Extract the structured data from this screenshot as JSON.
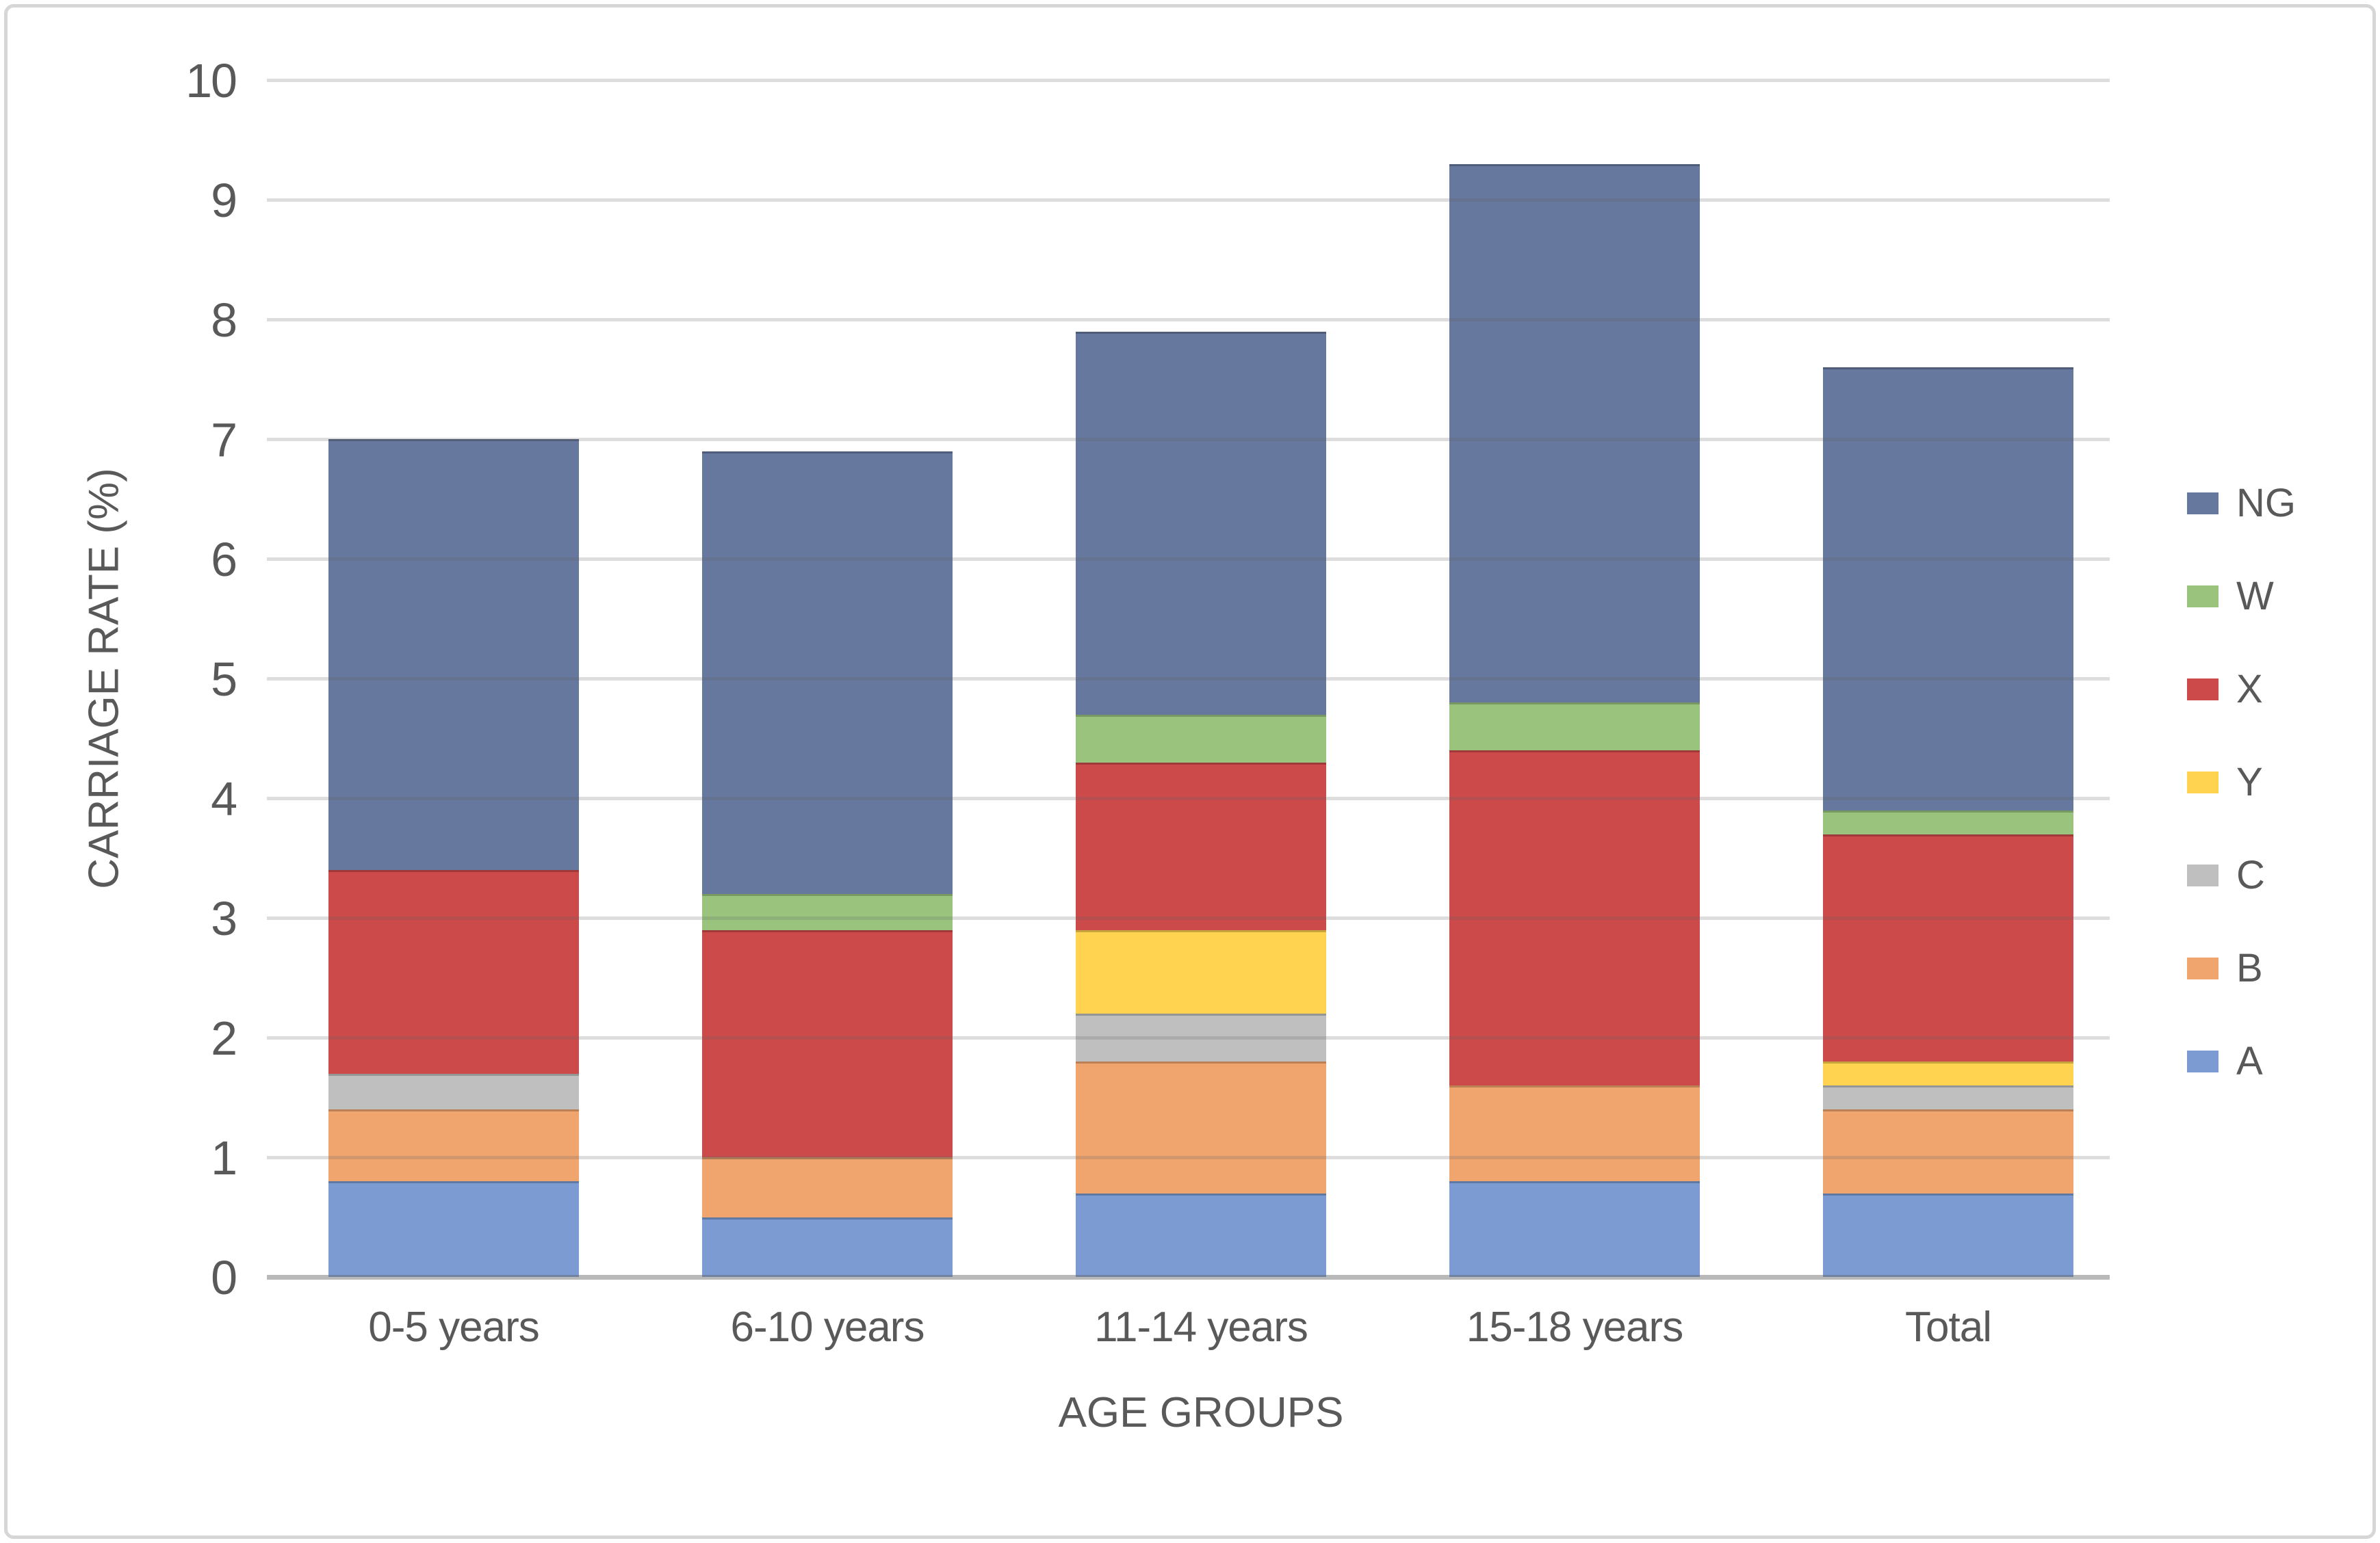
{
  "chart_data": {
    "type": "bar",
    "stacked": true,
    "title": "",
    "xlabel": "AGE GROUPS",
    "ylabel": "CARRIAGE RATE (%)",
    "ylim": [
      0,
      10
    ],
    "ytick_step": 1,
    "yticks": [
      0,
      1,
      2,
      3,
      4,
      5,
      6,
      7,
      8,
      9,
      10
    ],
    "grid": true,
    "legend_position": "right",
    "categories": [
      "0-5 years",
      "6-10 years",
      "11-14 years",
      "15-18 years",
      "Total"
    ],
    "series": [
      {
        "name": "A",
        "color": "#7C9BD3",
        "values": [
          0.8,
          0.5,
          0.7,
          0.8,
          0.7
        ]
      },
      {
        "name": "B",
        "color": "#F0A46E",
        "values": [
          0.6,
          0.5,
          1.1,
          0.8,
          0.7
        ]
      },
      {
        "name": "C",
        "color": "#BFBFBF",
        "values": [
          0.3,
          0.0,
          0.4,
          0.0,
          0.2
        ]
      },
      {
        "name": "Y",
        "color": "#FFD34F",
        "values": [
          0.0,
          0.0,
          0.7,
          0.0,
          0.2
        ]
      },
      {
        "name": "X",
        "color": "#CD4A4A",
        "values": [
          1.7,
          1.9,
          1.4,
          2.8,
          1.9
        ]
      },
      {
        "name": "W",
        "color": "#9AC47E",
        "values": [
          0.0,
          0.3,
          0.4,
          0.4,
          0.2
        ]
      },
      {
        "name": "NG",
        "color": "#66789E",
        "values": [
          3.6,
          3.7,
          3.2,
          4.5,
          3.7
        ]
      }
    ],
    "bar_totals": [
      7.0,
      6.9,
      7.9,
      9.3,
      7.6
    ],
    "legend_order": [
      "NG",
      "W",
      "X",
      "Y",
      "C",
      "B",
      "A"
    ],
    "colors": {
      "gridline": "#dcdcdc",
      "axis_text": "#595959",
      "chart_border": "#d6d6d6"
    }
  }
}
